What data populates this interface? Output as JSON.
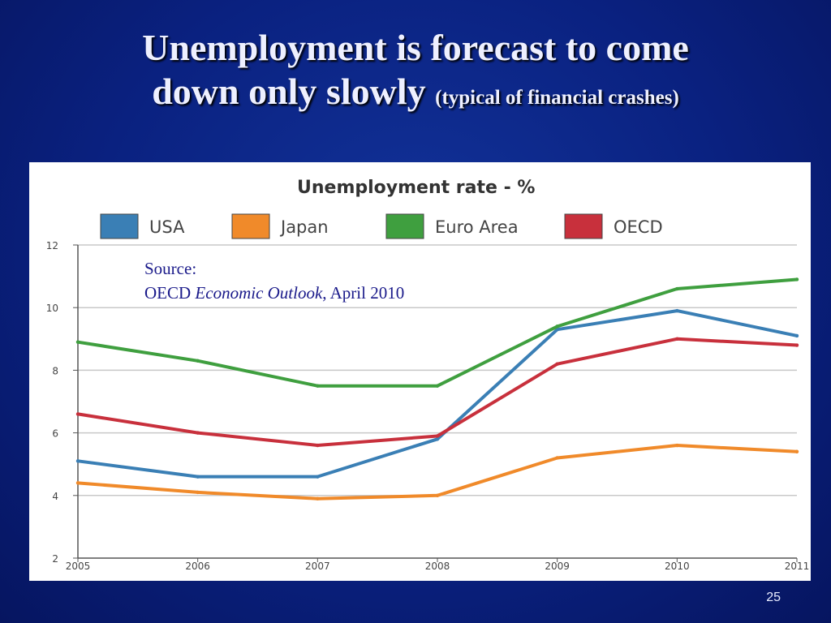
{
  "slide": {
    "title_line1": "Unemployment is forecast to come",
    "title_line2": "down only slowly",
    "title_small": "(typical of financial crashes)",
    "source_label": "Source:",
    "source_org": "OECD",
    "source_publication": "Economic Outlook",
    "source_date": ", April 2010",
    "page_number": "25"
  },
  "chart_data": {
    "type": "line",
    "title": "Unemployment rate - %",
    "categories": [
      "2005",
      "2006",
      "2007",
      "2008",
      "2009",
      "2010",
      "2011"
    ],
    "ylim": [
      2,
      12
    ],
    "yticks": [
      "2",
      "4",
      "6",
      "8",
      "10",
      "12"
    ],
    "grid": true,
    "legend_position": "top",
    "series": [
      {
        "name": "USA",
        "color": "#3a7fb5",
        "values": [
          5.1,
          4.6,
          4.6,
          5.8,
          9.3,
          9.9,
          9.1
        ]
      },
      {
        "name": "Japan",
        "color": "#f08a2a",
        "values": [
          4.4,
          4.1,
          3.9,
          4.0,
          5.2,
          5.6,
          5.4
        ]
      },
      {
        "name": "Euro Area",
        "color": "#3f9f3f",
        "values": [
          8.9,
          8.3,
          7.5,
          7.5,
          9.4,
          10.6,
          10.9
        ]
      },
      {
        "name": "OECD",
        "color": "#c8303c",
        "values": [
          6.6,
          6.0,
          5.6,
          5.9,
          8.2,
          9.0,
          8.8
        ]
      }
    ]
  }
}
